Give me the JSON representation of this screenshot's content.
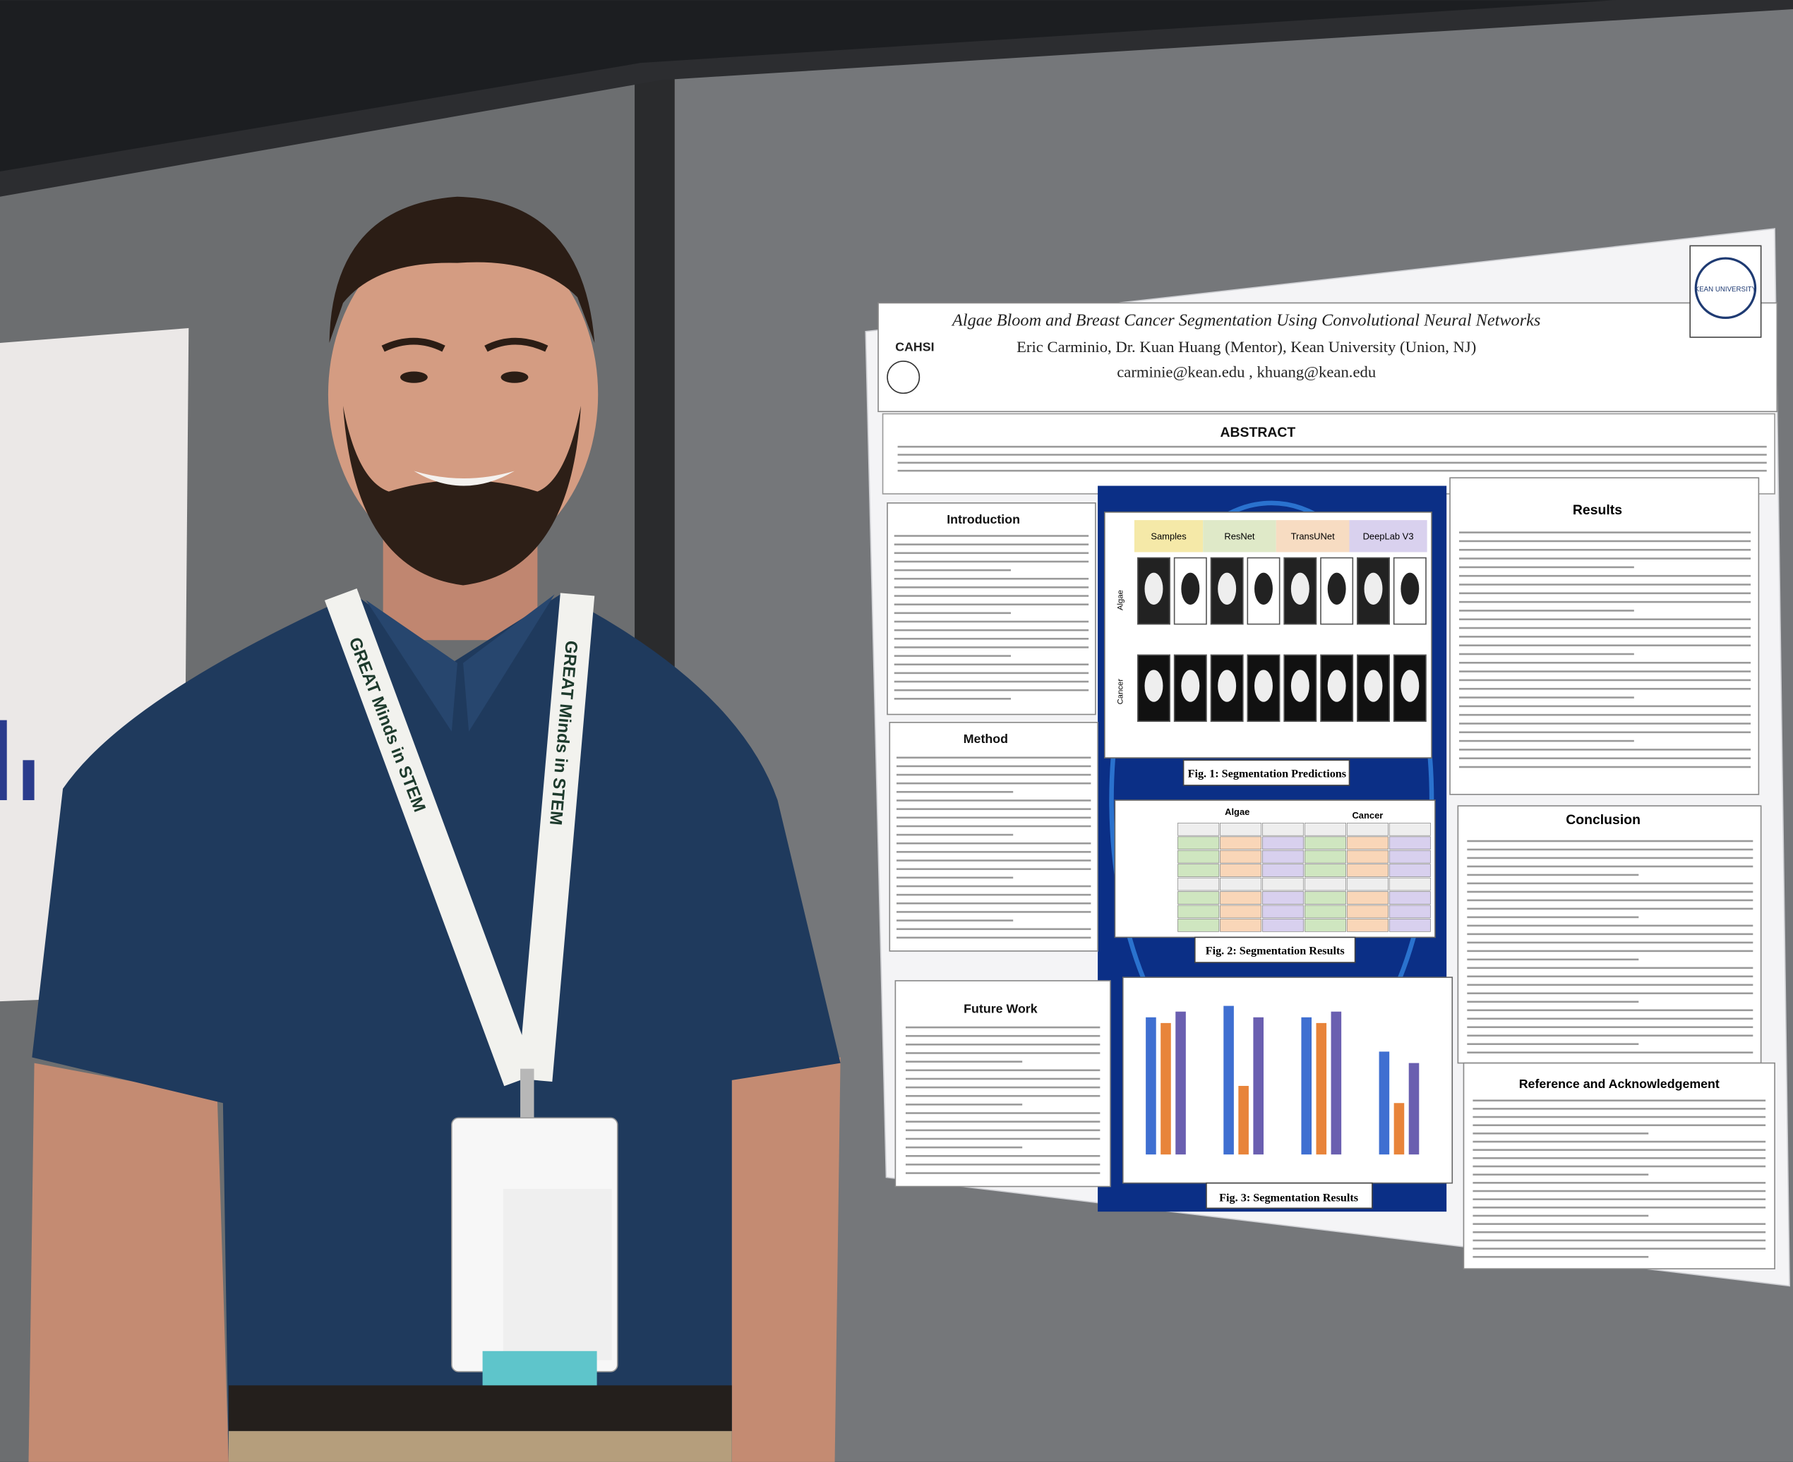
{
  "poster": {
    "title": "Algae Bloom and Breast Cancer Segmentation Using Convolutional Neural Networks",
    "authors": "Eric Carminio, Dr. Kuan Huang (Mentor), Kean University (Union, NJ)",
    "emails": "carminie@kean.edu , khuang@kean.edu",
    "logo_left": "CAHSI",
    "logo_right": "KEAN UNIVERSITY",
    "sections": [
      "ABSTRACT",
      "Introduction",
      "Method",
      "Future Work",
      "Results",
      "Conclusion",
      "Reference and Acknowledgement"
    ],
    "figures": [
      "Fig. 1: Segmentation Predictions",
      "Fig. 2: Segmentation Results",
      "Fig. 3: Segmentation Results"
    ],
    "fig1_columns": [
      "Samples",
      "ResNet",
      "TransUNet",
      "DeepLab V3"
    ],
    "fig1_rows": [
      "Algae",
      "Cancer"
    ],
    "fig2_groups": [
      "Algae",
      "Cancer"
    ]
  },
  "lanyard": {
    "text": "GREAT Minds in STEM"
  }
}
